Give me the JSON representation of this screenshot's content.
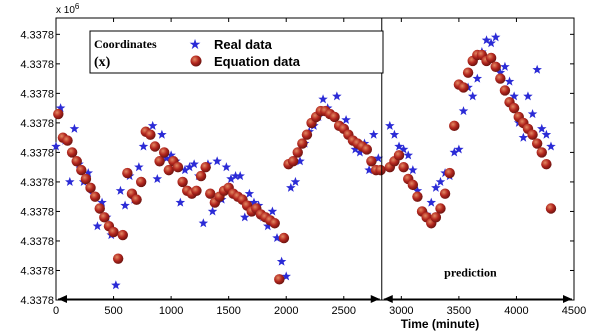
{
  "chart_data": {
    "type": "scatter",
    "title": "",
    "xlabel": "Time (minute)",
    "ylabel": "",
    "y_multiplier": "x 10",
    "y_multiplier_exp": "6",
    "xlim": [
      0,
      4500
    ],
    "ylim": [
      0,
      10
    ],
    "x_ticks": [
      0,
      500,
      1000,
      1500,
      2000,
      2500,
      3000,
      3500,
      4000,
      4500
    ],
    "y_ticks": [
      0,
      1,
      2,
      3,
      4,
      5,
      6,
      7,
      8,
      9
    ],
    "y_tick_labels": [
      "4.3378",
      "4.3378",
      "4.3378",
      "4.3378",
      "4.3378",
      "4.3378",
      "4.3378",
      "4.3378",
      "4.3378",
      "4.3378"
    ],
    "y_values_note": "",
    "grid": false,
    "legend": {
      "position": "top-left",
      "title": "Coordinates",
      "subtitle": "(x)",
      "entries": [
        "Real data",
        "Equation data"
      ]
    },
    "divider_x": 2830,
    "annotations": [
      {
        "text": "prediction",
        "x": 3600,
        "y": 0.8
      }
    ],
    "series": [
      {
        "name": "Real data",
        "marker": "star",
        "color": "#2b2bd6",
        "x": [
          0,
          40,
          80,
          120,
          160,
          200,
          240,
          280,
          320,
          360,
          400,
          440,
          480,
          520,
          560,
          600,
          640,
          680,
          720,
          760,
          800,
          840,
          880,
          920,
          960,
          1000,
          1040,
          1080,
          1120,
          1160,
          1200,
          1240,
          1280,
          1320,
          1360,
          1400,
          1440,
          1480,
          1520,
          1560,
          1600,
          1640,
          1680,
          1720,
          1760,
          1800,
          1840,
          1880,
          1920,
          1960,
          2000,
          2040,
          2080,
          2120,
          2160,
          2200,
          2240,
          2280,
          2320,
          2360,
          2400,
          2440,
          2480,
          2520,
          2560,
          2600,
          2640,
          2680,
          2720,
          2760,
          2800,
          2900,
          2940,
          2980,
          3020,
          3060,
          3100,
          3140,
          3180,
          3220,
          3260,
          3300,
          3340,
          3380,
          3420,
          3460,
          3500,
          3540,
          3580,
          3620,
          3660,
          3700,
          3740,
          3780,
          3820,
          3860,
          3900,
          3940,
          3980,
          4020,
          4060,
          4100,
          4140,
          4180,
          4220,
          4260,
          4300
        ],
        "y": [
          5.2,
          6.5,
          5.4,
          4.0,
          5.8,
          4.6,
          4.0,
          4.3,
          3.6,
          2.5,
          3.3,
          2.8,
          2.2,
          0.5,
          3.7,
          3.2,
          4.2,
          3.4,
          4.5,
          5.2,
          5.7,
          5.9,
          4.1,
          5.6,
          4.8,
          4.9,
          4.7,
          3.3,
          4.4,
          4.5,
          4.6,
          4.2,
          2.6,
          4.6,
          3.0,
          4.7,
          3.4,
          4.5,
          4.1,
          4.2,
          4.2,
          2.8,
          3.6,
          3.3,
          3.2,
          2.8,
          2.5,
          3.0,
          2.1,
          1.3,
          0.8,
          3.8,
          4.0,
          4.7,
          5.3,
          5.7,
          5.9,
          6.2,
          6.8,
          6.5,
          6.3,
          6.9,
          5.9,
          6.1,
          5.5,
          5.1,
          5.0,
          5.3,
          4.4,
          5.6,
          4.8,
          5.9,
          5.6,
          5.2,
          5.1,
          4.9,
          4.4,
          3.7,
          3.0,
          2.9,
          3.3,
          3.8,
          4.0,
          4.3,
          4.2,
          5.0,
          5.1,
          6.4,
          7.2,
          6.9,
          7.5,
          8.4,
          8.8,
          8.7,
          8.9,
          7.7,
          7.9,
          7.4,
          6.9,
          6.0,
          5.5,
          6.9,
          6.3,
          7.8,
          5.8,
          5.6,
          5.2
        ]
      },
      {
        "name": "Equation data",
        "marker": "circle",
        "color": "#b3261e",
        "x": [
          20,
          60,
          100,
          140,
          180,
          220,
          260,
          300,
          340,
          380,
          420,
          460,
          500,
          540,
          580,
          620,
          660,
          700,
          740,
          780,
          820,
          860,
          900,
          940,
          980,
          1020,
          1060,
          1100,
          1140,
          1180,
          1220,
          1260,
          1300,
          1340,
          1380,
          1420,
          1460,
          1500,
          1540,
          1580,
          1620,
          1660,
          1700,
          1740,
          1780,
          1820,
          1860,
          1900,
          1940,
          1980,
          2020,
          2060,
          2100,
          2140,
          2180,
          2220,
          2260,
          2300,
          2340,
          2380,
          2420,
          2460,
          2500,
          2540,
          2580,
          2620,
          2660,
          2700,
          2740,
          2780,
          2820,
          2900,
          2940,
          2980,
          3020,
          3060,
          3100,
          3140,
          3180,
          3220,
          3260,
          3300,
          3340,
          3380,
          3420,
          3460,
          3500,
          3540,
          3580,
          3620,
          3660,
          3700,
          3740,
          3780,
          3820,
          3860,
          3900,
          3940,
          3980,
          4020,
          4060,
          4100,
          4140,
          4180,
          4220,
          4260,
          4300
        ],
        "y": [
          6.3,
          5.5,
          5.4,
          5.0,
          4.7,
          4.4,
          4.1,
          3.8,
          3.5,
          3.1,
          2.8,
          2.5,
          2.3,
          1.4,
          2.2,
          4.3,
          3.6,
          3.4,
          4.0,
          5.7,
          5.6,
          5.2,
          4.7,
          5.0,
          4.4,
          4.7,
          4.5,
          4.0,
          3.7,
          3.6,
          3.7,
          4.2,
          4.5,
          3.6,
          3.3,
          3.5,
          3.7,
          3.8,
          3.6,
          3.5,
          3.4,
          3.2,
          3.0,
          3.1,
          2.9,
          2.8,
          2.7,
          2.6,
          0.7,
          2.1,
          4.6,
          4.7,
          5.0,
          5.3,
          5.6,
          6.0,
          6.2,
          6.4,
          6.4,
          6.3,
          6.2,
          5.9,
          5.8,
          5.6,
          5.4,
          5.3,
          5.2,
          5.1,
          4.7,
          4.4,
          4.4,
          4.5,
          4.7,
          4.9,
          4.5,
          4.1,
          3.9,
          3.5,
          3.0,
          2.8,
          2.6,
          2.8,
          3.1,
          3.6,
          4.3,
          5.9,
          7.3,
          7.2,
          7.7,
          8.1,
          8.3,
          8.3,
          8.1,
          8.2,
          7.9,
          7.5,
          7.1,
          6.7,
          6.5,
          6.2,
          6.0,
          5.8,
          5.6,
          5.3,
          5.0,
          4.6,
          3.1
        ]
      }
    ]
  }
}
